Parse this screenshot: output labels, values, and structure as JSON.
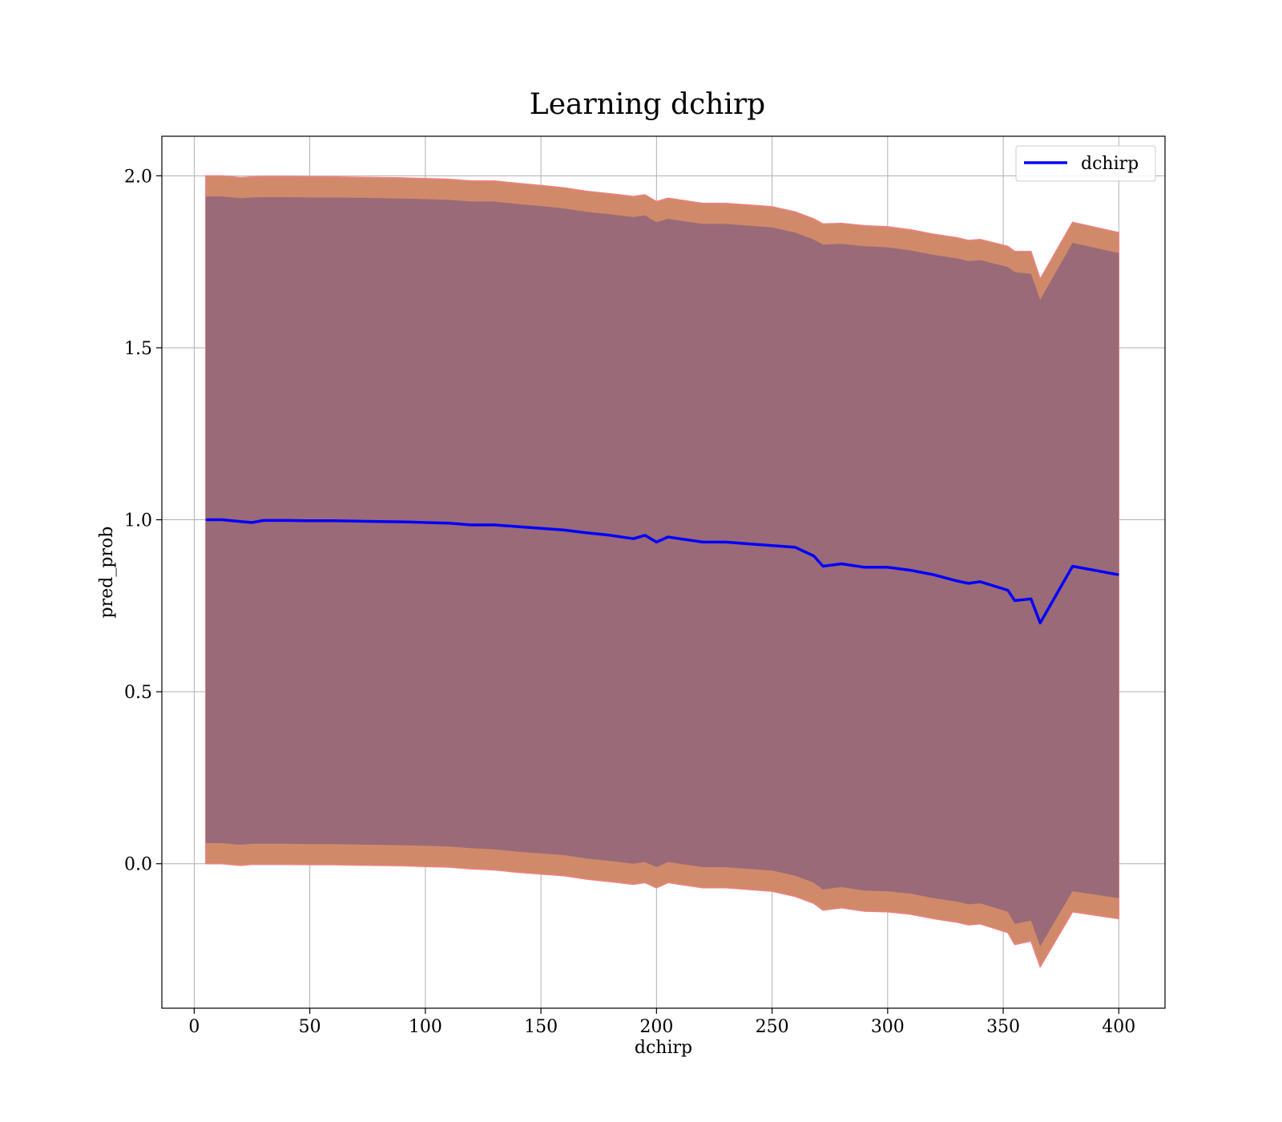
{
  "chart_data": {
    "type": "line",
    "title": "Learning dchirp",
    "xlabel": "dchirp",
    "ylabel": "pred_prob",
    "xlim": [
      -14,
      420
    ],
    "ylim": [
      -0.42,
      2.115
    ],
    "xticks": [
      0,
      50,
      100,
      150,
      200,
      250,
      300,
      350,
      400
    ],
    "yticks": [
      0.0,
      0.5,
      1.0,
      1.5,
      2.0
    ],
    "xtick_labels": [
      "0",
      "50",
      "100",
      "150",
      "200",
      "250",
      "300",
      "350",
      "400"
    ],
    "ytick_labels": [
      "0.0",
      "0.5",
      "1.0",
      "1.5",
      "2.0"
    ],
    "grid": true,
    "legend": {
      "position": "top-right",
      "entries": [
        "dchirp"
      ]
    },
    "series": [
      {
        "name": "dchirp",
        "color": "#0000ff",
        "x": [
          5,
          12,
          20,
          25,
          30,
          40,
          50,
          60,
          70,
          80,
          90,
          100,
          110,
          120,
          130,
          140,
          150,
          160,
          170,
          180,
          190,
          195,
          200,
          205,
          210,
          220,
          230,
          240,
          250,
          260,
          268,
          272,
          280,
          290,
          300,
          310,
          320,
          330,
          335,
          340,
          352,
          355,
          362,
          366,
          380,
          400
        ],
        "y": [
          1.0,
          1.0,
          0.995,
          0.992,
          0.998,
          0.998,
          0.997,
          0.997,
          0.996,
          0.995,
          0.994,
          0.992,
          0.99,
          0.985,
          0.985,
          0.98,
          0.975,
          0.97,
          0.962,
          0.955,
          0.945,
          0.955,
          0.935,
          0.95,
          0.945,
          0.935,
          0.935,
          0.93,
          0.925,
          0.92,
          0.895,
          0.865,
          0.872,
          0.862,
          0.862,
          0.853,
          0.84,
          0.822,
          0.815,
          0.82,
          0.795,
          0.765,
          0.77,
          0.7,
          0.865,
          0.84
        ]
      }
    ],
    "bands": [
      {
        "kind": "outer",
        "color": "#d08a6a",
        "upper": [
          2.0,
          2.0,
          1.995,
          1.997,
          1.998,
          1.998,
          1.997,
          1.997,
          1.996,
          1.995,
          1.994,
          1.992,
          1.99,
          1.985,
          1.985,
          1.978,
          1.972,
          1.965,
          1.955,
          1.948,
          1.94,
          1.945,
          1.925,
          1.935,
          1.93,
          1.92,
          1.92,
          1.915,
          1.91,
          1.895,
          1.875,
          1.86,
          1.862,
          1.855,
          1.852,
          1.843,
          1.83,
          1.82,
          1.812,
          1.815,
          1.795,
          1.78,
          1.78,
          1.7,
          1.865,
          1.835
        ],
        "lower": [
          0.0,
          0.0,
          -0.005,
          -0.002,
          -0.002,
          -0.002,
          -0.003,
          -0.003,
          -0.004,
          -0.005,
          -0.006,
          -0.008,
          -0.01,
          -0.015,
          -0.018,
          -0.025,
          -0.03,
          -0.035,
          -0.045,
          -0.052,
          -0.06,
          -0.055,
          -0.07,
          -0.055,
          -0.06,
          -0.07,
          -0.07,
          -0.075,
          -0.08,
          -0.095,
          -0.115,
          -0.135,
          -0.128,
          -0.138,
          -0.14,
          -0.147,
          -0.16,
          -0.17,
          -0.178,
          -0.175,
          -0.2,
          -0.235,
          -0.225,
          -0.3,
          -0.14,
          -0.16
        ]
      },
      {
        "kind": "inner",
        "color": "#9a6a78",
        "upper": [
          1.94,
          1.94,
          1.935,
          1.937,
          1.938,
          1.938,
          1.937,
          1.937,
          1.936,
          1.935,
          1.934,
          1.932,
          1.93,
          1.925,
          1.925,
          1.918,
          1.912,
          1.905,
          1.895,
          1.888,
          1.88,
          1.885,
          1.865,
          1.875,
          1.87,
          1.86,
          1.86,
          1.855,
          1.85,
          1.835,
          1.815,
          1.8,
          1.802,
          1.795,
          1.792,
          1.783,
          1.77,
          1.76,
          1.752,
          1.755,
          1.735,
          1.72,
          1.715,
          1.64,
          1.805,
          1.775
        ],
        "lower": [
          0.06,
          0.06,
          0.055,
          0.058,
          0.058,
          0.058,
          0.057,
          0.057,
          0.056,
          0.055,
          0.054,
          0.052,
          0.05,
          0.045,
          0.042,
          0.035,
          0.03,
          0.025,
          0.015,
          0.008,
          0.0,
          0.005,
          -0.01,
          0.005,
          0.0,
          -0.01,
          -0.01,
          -0.015,
          -0.02,
          -0.035,
          -0.055,
          -0.075,
          -0.068,
          -0.078,
          -0.08,
          -0.087,
          -0.1,
          -0.11,
          -0.118,
          -0.115,
          -0.14,
          -0.175,
          -0.165,
          -0.24,
          -0.08,
          -0.1
        ]
      }
    ]
  }
}
